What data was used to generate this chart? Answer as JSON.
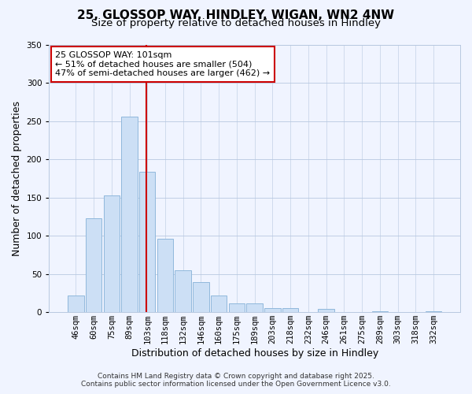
{
  "title": "25, GLOSSOP WAY, HINDLEY, WIGAN, WN2 4NW",
  "subtitle": "Size of property relative to detached houses in Hindley",
  "xlabel": "Distribution of detached houses by size in Hindley",
  "ylabel": "Number of detached properties",
  "categories": [
    "46sqm",
    "60sqm",
    "75sqm",
    "89sqm",
    "103sqm",
    "118sqm",
    "132sqm",
    "146sqm",
    "160sqm",
    "175sqm",
    "189sqm",
    "203sqm",
    "218sqm",
    "232sqm",
    "246sqm",
    "261sqm",
    "275sqm",
    "289sqm",
    "303sqm",
    "318sqm",
    "332sqm"
  ],
  "values": [
    22,
    123,
    153,
    256,
    184,
    96,
    55,
    39,
    22,
    11,
    12,
    5,
    5,
    0,
    4,
    0,
    0,
    1,
    0,
    0,
    1
  ],
  "bar_color": "#ccdff5",
  "bar_edgecolor": "#90b8dc",
  "vline_color": "#cc0000",
  "vline_x": 3.93,
  "annotation_title": "25 GLOSSOP WAY: 101sqm",
  "annotation_line1": "← 51% of detached houses are smaller (504)",
  "annotation_line2": "47% of semi-detached houses are larger (462) →",
  "annotation_box_facecolor": "#ffffff",
  "annotation_box_edgecolor": "#cc0000",
  "ylim": [
    0,
    350
  ],
  "yticks": [
    0,
    50,
    100,
    150,
    200,
    250,
    300,
    350
  ],
  "footer1": "Contains HM Land Registry data © Crown copyright and database right 2025.",
  "footer2": "Contains public sector information licensed under the Open Government Licence v3.0.",
  "background_color": "#f0f4ff",
  "grid_color": "#b8c8e0",
  "title_fontsize": 11,
  "subtitle_fontsize": 9.5,
  "axis_label_fontsize": 9,
  "tick_fontsize": 7.5,
  "annotation_fontsize": 8,
  "footer_fontsize": 6.5
}
